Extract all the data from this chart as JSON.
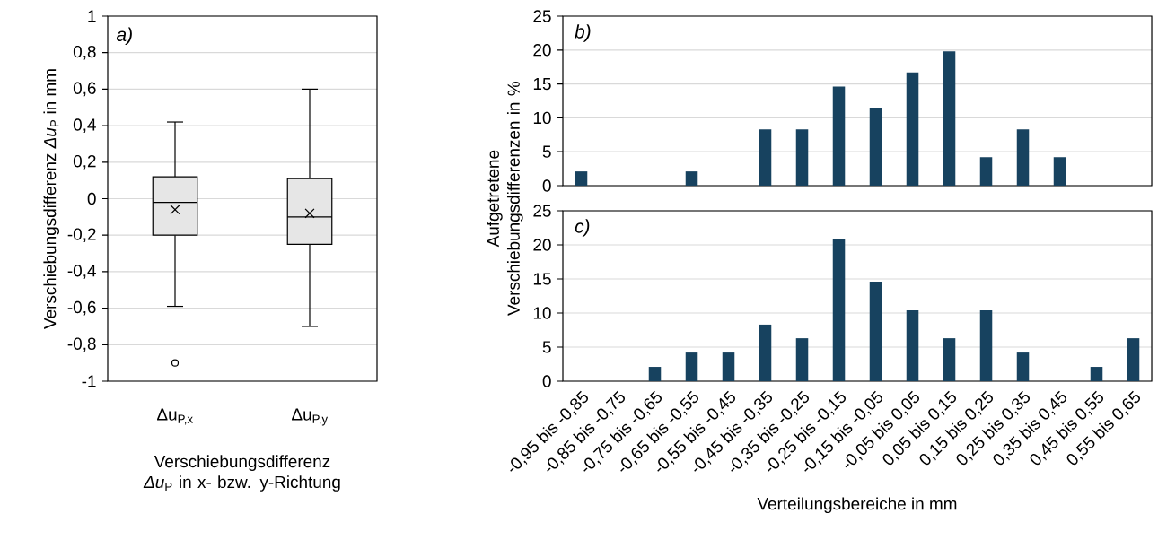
{
  "chart_data": [
    {
      "type": "box",
      "title": "a)",
      "ylabel": "Verschiebungsdifferenz *Δu*$_{P}$ in mm",
      "xlabel": "Verschiebungsdifferenz *Δu*$_{P}$ in x- bzw. y-Richtung",
      "categories": [
        "Δu$_{P,x}$",
        "Δu$_{P,y}$"
      ],
      "color": "#e6e6e6",
      "boxes": [
        {
          "low": -0.59,
          "q1": -0.2,
          "median": -0.02,
          "q3": 0.12,
          "high": 0.42,
          "mean": -0.06,
          "outliers": [
            -0.9
          ]
        },
        {
          "low": -0.7,
          "q1": -0.25,
          "median": -0.1,
          "q3": 0.11,
          "high": 0.6,
          "mean": -0.08
        }
      ],
      "ylim": [
        -1,
        1
      ],
      "yticks": [
        -1,
        {
          "value": -0.8,
          "label": "-0,8"
        },
        {
          "value": -0.6,
          "label": "-0,6"
        },
        {
          "value": -0.4,
          "label": "-0,4"
        },
        {
          "value": -0.2,
          "label": "-0,2"
        },
        0,
        {
          "value": 0.2,
          "label": "0,2"
        },
        {
          "value": 0.4,
          "label": "0,4"
        },
        {
          "value": 0.6,
          "label": "0,6"
        },
        {
          "value": 0.8,
          "label": "0,8"
        },
        1
      ],
      "grid": "y"
    },
    {
      "type": "bar",
      "title": "b)",
      "ylabel": "Aufgetretene Verschiebungsdifferenzen in %",
      "categories": [
        null,
        null,
        null,
        null,
        null,
        null,
        null,
        null,
        null,
        null,
        null,
        null,
        null,
        null,
        null,
        null
      ],
      "color": "#17425f",
      "values": [
        2.1,
        0,
        0,
        2.1,
        0,
        8.3,
        8.3,
        14.6,
        11.5,
        16.7,
        19.8,
        4.2,
        8.3,
        4.2,
        0,
        0
      ],
      "ylim": [
        0,
        25
      ],
      "yticks": [
        0,
        5,
        10,
        15,
        20,
        25
      ],
      "grid": "y",
      "tick_labels": "y"
    },
    {
      "type": "bar",
      "title": "c)",
      "xlabel": "Verteilungsbereiche in mm",
      "categories": [
        "-0,95 bis -0,85",
        "-0,85 bis -0,75",
        "-0,75 bis -0,65",
        "-0,65 bis -0,55",
        "-0,55 bis -0,45",
        "-0,45 bis -0,35",
        "-0,35 bis -0,25",
        "-0,25 bis -0,15",
        "-0,15 bis -0,05",
        "-0,05 bis 0,05",
        "0,05 bis 0,15",
        "0,15 bis 0,25",
        "0,25 bis 0,35",
        "0,35 bis 0,45",
        "0,45 bis 0,55",
        "0,55 bis 0,65"
      ],
      "color": "#17425f",
      "values": [
        0,
        0,
        2.1,
        4.2,
        4.2,
        8.3,
        6.3,
        20.8,
        14.6,
        10.4,
        6.3,
        10.4,
        4.2,
        0,
        2.1,
        6.3
      ],
      "ylim": [
        0,
        25
      ],
      "yticks": [
        0,
        5,
        10,
        15,
        20,
        25
      ],
      "grid": "y"
    }
  ]
}
